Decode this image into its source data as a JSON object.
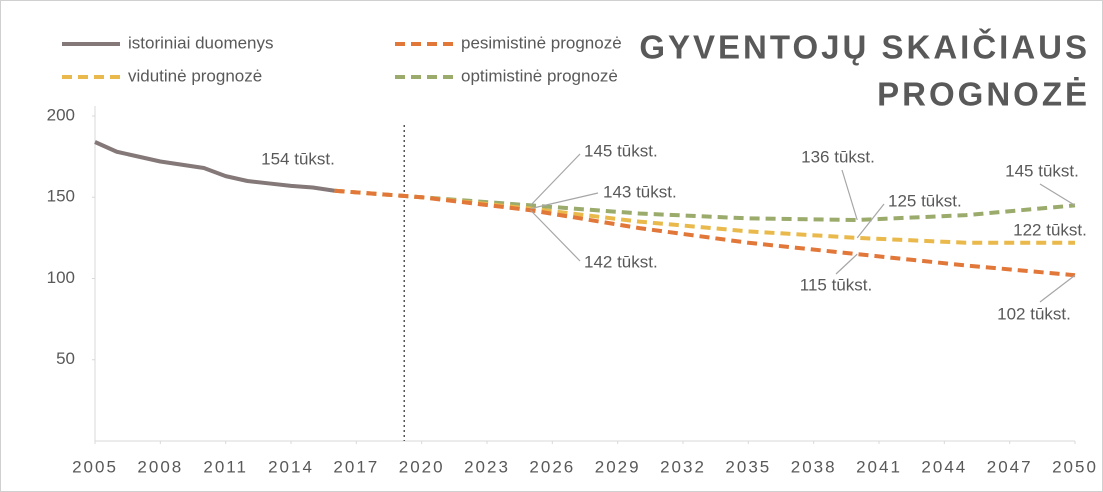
{
  "chart_data": {
    "type": "line",
    "title": [
      "GYVENTOJŲ SKAIČIAUS",
      "PROGNOZĖ"
    ],
    "x": [
      2005,
      2006,
      2007,
      2008,
      2009,
      2010,
      2011,
      2012,
      2013,
      2014,
      2015,
      2016,
      2020,
      2025,
      2030,
      2035,
      2040,
      2045,
      2050
    ],
    "series": [
      {
        "name": "istoriniai duomenys",
        "color": "#857878",
        "dash": false,
        "values": [
          184,
          178,
          175,
          172,
          170,
          168,
          163,
          160,
          158.5,
          157,
          156,
          154,
          null,
          null,
          null,
          null,
          null,
          null,
          null
        ]
      },
      {
        "name": "pesimistinė prognozė",
        "color": "#e2773a",
        "dash": true,
        "values": [
          null,
          null,
          null,
          null,
          null,
          null,
          null,
          null,
          null,
          null,
          null,
          154,
          150,
          142,
          131,
          122,
          115,
          108,
          102
        ]
      },
      {
        "name": "vidutinė prognozė",
        "color": "#e9b94c",
        "dash": true,
        "values": [
          null,
          null,
          null,
          null,
          null,
          null,
          null,
          null,
          null,
          null,
          null,
          154,
          150,
          143,
          135,
          129,
          125,
          122,
          122
        ]
      },
      {
        "name": "optimistinė prognozė",
        "color": "#9bab6b",
        "dash": true,
        "values": [
          null,
          null,
          null,
          null,
          null,
          null,
          null,
          null,
          null,
          null,
          null,
          154,
          150,
          145,
          140,
          137,
          136,
          139,
          145
        ]
      }
    ],
    "annotations": [
      "154 tūkst.",
      "145 tūkst.",
      "143 tūkst.",
      "142 tūkst.",
      "136 tūkst.",
      "125 tūkst.",
      "115 tūkst.",
      "145 tūkst.",
      "122 tūkst.",
      "102 tūkst."
    ],
    "vline": 2019.2,
    "xlim": [
      2005,
      2050
    ],
    "xticks": [
      2005,
      2008,
      2011,
      2014,
      2017,
      2020,
      2023,
      2026,
      2029,
      2032,
      2035,
      2038,
      2041,
      2044,
      2047,
      2050
    ],
    "ylim": [
      0,
      200
    ],
    "yticks": [
      50,
      100,
      150,
      200
    ],
    "grid": false
  }
}
